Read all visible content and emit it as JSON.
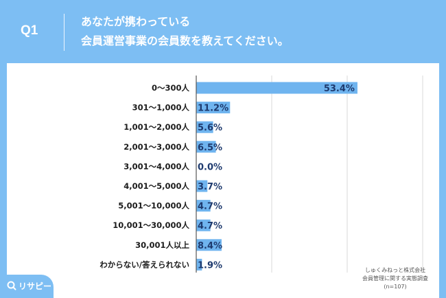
{
  "header": {
    "q_label": "Q1",
    "title_line1": "あなたが携わっている",
    "title_line2": "会員運営事業の会員数を教えてください。"
  },
  "source": {
    "line1": "しゅくみねっと株式会社",
    "line2": "会員管理に関する実態調査",
    "line3": "(n=107)"
  },
  "logo": {
    "text": "リサピー",
    "icon": "search-icon"
  },
  "colors": {
    "background": "#7dbef3",
    "bar": "#6fb4ef",
    "label": "#1e3a6e"
  },
  "chart_data": {
    "type": "bar",
    "orientation": "horizontal",
    "categories": [
      "0〜300人",
      "301〜1,000人",
      "1,001〜2,000人",
      "2,001〜3,000人",
      "3,001〜4,000人",
      "4,001〜5,000人",
      "5,001〜10,000人",
      "10,001〜30,000人",
      "30,001人以上",
      "わからない/答えられない"
    ],
    "values": [
      53.4,
      11.2,
      5.6,
      6.5,
      0.0,
      3.7,
      4.7,
      4.7,
      8.4,
      1.9
    ],
    "value_labels": [
      "53.4%",
      "11.2%",
      "5.6%",
      "6.5%",
      "0.0%",
      "3.7%",
      "4.7%",
      "4.7%",
      "8.4%",
      "1.9%"
    ],
    "xlim": [
      0,
      100
    ],
    "grid": true
  }
}
